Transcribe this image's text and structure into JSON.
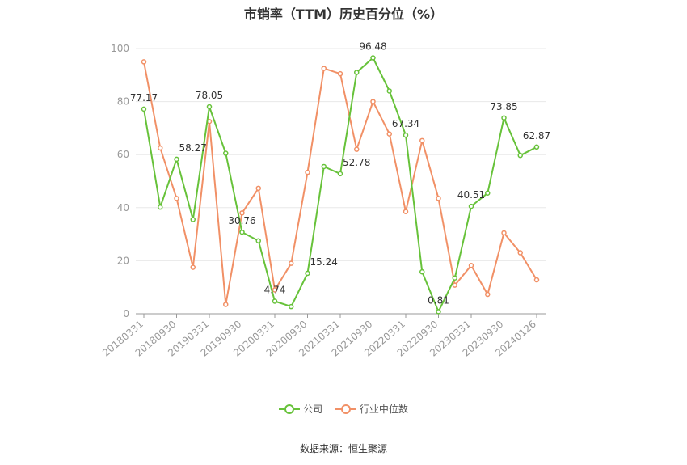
{
  "title": "市销率（TTM）历史百分位（%）",
  "source": "数据来源：恒生聚源",
  "legend": {
    "series_0": "公司",
    "series_1": "行业中位数"
  },
  "colors": {
    "company": "#67c23a",
    "industry": "#f19066",
    "axis": "#999999",
    "grid": "#e8e8e8"
  },
  "chart_data": {
    "type": "line",
    "title": "市销率（TTM）历史百分位（%）",
    "ylim": [
      0,
      100
    ],
    "y_ticks": [
      0,
      20,
      40,
      60,
      80,
      100
    ],
    "grid": true,
    "legend_position": "bottom",
    "x_tick_labels": [
      "20180331",
      "20180930",
      "20190331",
      "20190930",
      "20200331",
      "20200930",
      "20210331",
      "20210930",
      "20220331",
      "20220930",
      "20230331",
      "20230930",
      "20240126"
    ],
    "x": [
      "20180331",
      "20180630",
      "20180930",
      "20181231",
      "20190331",
      "20190630",
      "20190930",
      "20191231",
      "20200331",
      "20200630",
      "20200930",
      "20201231",
      "20210331",
      "20210630",
      "20210930",
      "20211231",
      "20220331",
      "20220630",
      "20220930",
      "20221231",
      "20230331",
      "20230630",
      "20230930",
      "20231231",
      "20240126"
    ],
    "series": [
      {
        "name": "公司",
        "values": [
          77.17,
          40.2,
          58.27,
          35.5,
          78.05,
          60.5,
          30.76,
          27.5,
          4.74,
          2.7,
          15.24,
          55.5,
          52.78,
          91.0,
          96.48,
          84.0,
          67.34,
          15.8,
          0.81,
          13.5,
          40.51,
          45.5,
          73.85,
          59.7,
          62.87
        ],
        "labels": [
          "77.17",
          null,
          "58.27",
          null,
          "78.05",
          null,
          "30.76",
          null,
          "4.74",
          null,
          "15.24",
          null,
          "52.78",
          null,
          "96.48",
          null,
          "67.34",
          null,
          "0.81",
          null,
          "40.51",
          null,
          "73.85",
          null,
          "62.87"
        ]
      },
      {
        "name": "行业中位数",
        "values": [
          95.0,
          62.5,
          43.5,
          17.5,
          72.5,
          3.5,
          38.0,
          47.3,
          9.0,
          19.0,
          53.3,
          92.5,
          90.5,
          62.0,
          80.0,
          67.8,
          38.5,
          65.3,
          43.5,
          10.8,
          18.2,
          7.3,
          30.5,
          23.0,
          12.8
        ]
      }
    ]
  }
}
